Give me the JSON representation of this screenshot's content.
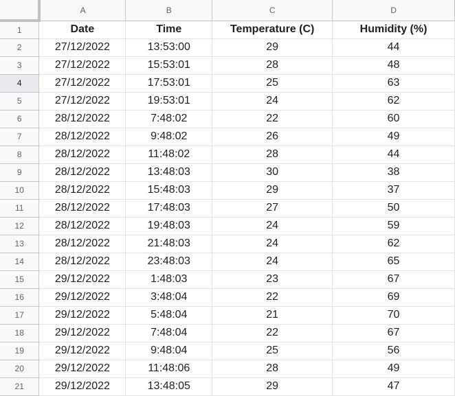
{
  "columns": [
    "A",
    "B",
    "C",
    "D"
  ],
  "row_numbers": [
    "1",
    "2",
    "3",
    "4",
    "5",
    "6",
    "7",
    "8",
    "9",
    "10",
    "11",
    "12",
    "13",
    "14",
    "15",
    "16",
    "17",
    "18",
    "19",
    "20",
    "21"
  ],
  "selected_row": "4",
  "header": {
    "date": "Date",
    "time": "Time",
    "temperature": "Temperature (C)",
    "humidity": "Humidity (%)"
  },
  "rows": [
    {
      "date": "27/12/2022",
      "time": "13:53:00",
      "temperature": "29",
      "humidity": "44"
    },
    {
      "date": "27/12/2022",
      "time": "15:53:01",
      "temperature": "28",
      "humidity": "48"
    },
    {
      "date": "27/12/2022",
      "time": "17:53:01",
      "temperature": "25",
      "humidity": "63"
    },
    {
      "date": "27/12/2022",
      "time": "19:53:01",
      "temperature": "24",
      "humidity": "62"
    },
    {
      "date": "28/12/2022",
      "time": "7:48:02",
      "temperature": "22",
      "humidity": "60"
    },
    {
      "date": "28/12/2022",
      "time": "9:48:02",
      "temperature": "26",
      "humidity": "49"
    },
    {
      "date": "28/12/2022",
      "time": "11:48:02",
      "temperature": "28",
      "humidity": "44"
    },
    {
      "date": "28/12/2022",
      "time": "13:48:03",
      "temperature": "30",
      "humidity": "38"
    },
    {
      "date": "28/12/2022",
      "time": "15:48:03",
      "temperature": "29",
      "humidity": "37"
    },
    {
      "date": "28/12/2022",
      "time": "17:48:03",
      "temperature": "27",
      "humidity": "50"
    },
    {
      "date": "28/12/2022",
      "time": "19:48:03",
      "temperature": "24",
      "humidity": "59"
    },
    {
      "date": "28/12/2022",
      "time": "21:48:03",
      "temperature": "24",
      "humidity": "62"
    },
    {
      "date": "28/12/2022",
      "time": "23:48:03",
      "temperature": "24",
      "humidity": "65"
    },
    {
      "date": "29/12/2022",
      "time": "1:48:03",
      "temperature": "23",
      "humidity": "67"
    },
    {
      "date": "29/12/2022",
      "time": "3:48:04",
      "temperature": "22",
      "humidity": "69"
    },
    {
      "date": "29/12/2022",
      "time": "5:48:04",
      "temperature": "21",
      "humidity": "70"
    },
    {
      "date": "29/12/2022",
      "time": "7:48:04",
      "temperature": "22",
      "humidity": "67"
    },
    {
      "date": "29/12/2022",
      "time": "9:48:04",
      "temperature": "25",
      "humidity": "56"
    },
    {
      "date": "29/12/2022",
      "time": "11:48:06",
      "temperature": "28",
      "humidity": "49"
    },
    {
      "date": "29/12/2022",
      "time": "13:48:05",
      "temperature": "29",
      "humidity": "47"
    }
  ],
  "colors": {
    "header_bg": "#f8f9fa",
    "grid_line": "#e2e3e3",
    "text": "#202124",
    "header_text": "#5f6368"
  }
}
